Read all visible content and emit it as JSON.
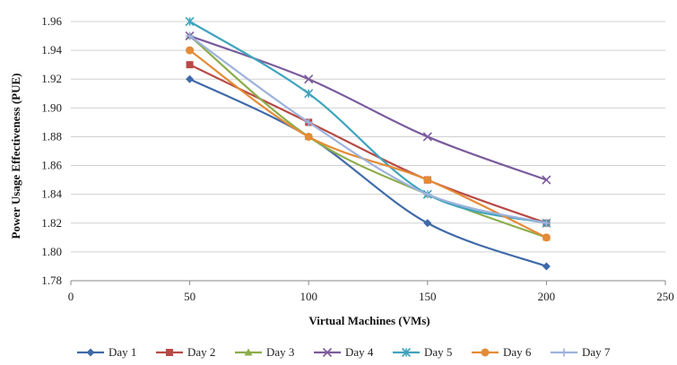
{
  "chart_data": {
    "type": "line",
    "xlabel": "Virtual Machines (VMs)",
    "ylabel": "Power Usage Effectiveness (PUE)",
    "xlim": [
      0,
      250
    ],
    "ylim": [
      1.78,
      1.96
    ],
    "x_ticks": [
      "0",
      "50",
      "100",
      "150",
      "200",
      "250"
    ],
    "y_ticks": [
      "1.78",
      "1.80",
      "1.82",
      "1.84",
      "1.86",
      "1.88",
      "1.90",
      "1.92",
      "1.94",
      "1.96"
    ],
    "grid": "horizontal",
    "legend": "bottom",
    "x": [
      50,
      100,
      150,
      200
    ],
    "series": [
      {
        "name": "Day 1",
        "color": "#3f6aa8",
        "marker": "diamond",
        "values": [
          1.92,
          1.88,
          1.82,
          1.79
        ]
      },
      {
        "name": "Day 2",
        "color": "#b84a46",
        "marker": "square",
        "values": [
          1.93,
          1.89,
          1.85,
          1.82
        ]
      },
      {
        "name": "Day 3",
        "color": "#8cac4a",
        "marker": "triangle",
        "values": [
          1.95,
          1.88,
          1.84,
          1.81
        ]
      },
      {
        "name": "Day 4",
        "color": "#7a5b9c",
        "marker": "x",
        "values": [
          1.95,
          1.92,
          1.88,
          1.85
        ]
      },
      {
        "name": "Day 5",
        "color": "#3fa4bd",
        "marker": "asterisk",
        "values": [
          1.96,
          1.91,
          1.84,
          1.82
        ]
      },
      {
        "name": "Day 6",
        "color": "#e48b36",
        "marker": "circle",
        "values": [
          1.94,
          1.88,
          1.85,
          1.81
        ]
      },
      {
        "name": "Day 7",
        "color": "#9cb2dc",
        "marker": "plus",
        "values": [
          1.95,
          1.89,
          1.84,
          1.82
        ]
      }
    ]
  }
}
